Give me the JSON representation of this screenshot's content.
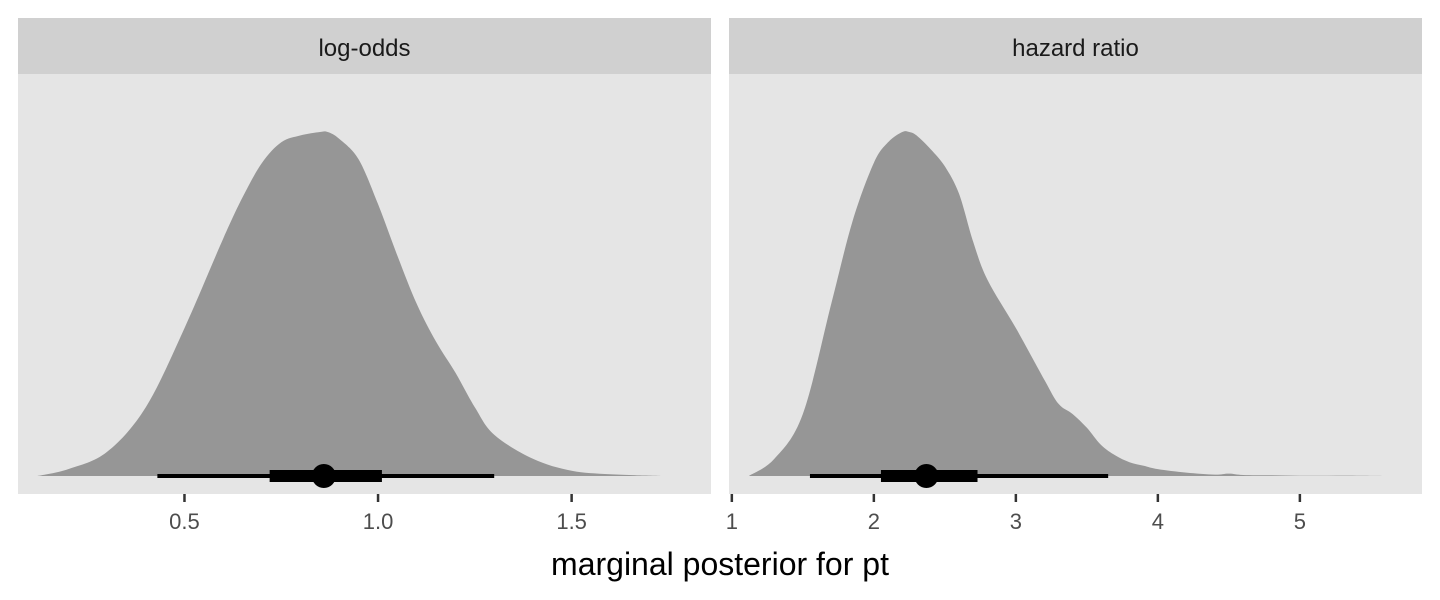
{
  "chart_data": {
    "type": "area",
    "xlabel": "marginal posterior for pt",
    "ylabel": "",
    "grid": false,
    "colors": {
      "panel_background": "#e5e5e5",
      "strip_background": "#d0d0d0",
      "density_fill": "#969696",
      "interval": "#000000",
      "tick": "#333333"
    },
    "panels": [
      {
        "strip_label": "log-odds",
        "xlim": [
          0.07,
          1.86
        ],
        "x_ticks": [
          0.5,
          1.0,
          1.5
        ],
        "x_tick_labels": [
          "0.5",
          "1.0",
          "1.5"
        ],
        "density": {
          "x": [
            0.12,
            0.2,
            0.3,
            0.4,
            0.5,
            0.6,
            0.65,
            0.7,
            0.75,
            0.8,
            0.85,
            0.87,
            0.9,
            0.95,
            1.0,
            1.05,
            1.1,
            1.15,
            1.2,
            1.25,
            1.3,
            1.4,
            1.5,
            1.6,
            1.74
          ],
          "y": [
            0.0,
            0.02,
            0.07,
            0.2,
            0.43,
            0.69,
            0.81,
            0.91,
            0.97,
            0.99,
            1.0,
            1.0,
            0.98,
            0.92,
            0.79,
            0.64,
            0.5,
            0.39,
            0.3,
            0.2,
            0.12,
            0.05,
            0.015,
            0.005,
            0.0
          ]
        },
        "point_estimate": 0.86,
        "interval_66": [
          0.72,
          1.01
        ],
        "interval_95": [
          0.43,
          1.3
        ]
      },
      {
        "strip_label": "hazard ratio",
        "xlim": [
          0.98,
          5.86
        ],
        "x_ticks": [
          1,
          2,
          3,
          4,
          5
        ],
        "x_tick_labels": [
          "1",
          "2",
          "3",
          "4",
          "5"
        ],
        "density": {
          "x": [
            1.12,
            1.3,
            1.5,
            1.7,
            1.85,
            2.0,
            2.1,
            2.2,
            2.25,
            2.3,
            2.4,
            2.5,
            2.6,
            2.7,
            2.8,
            3.0,
            3.2,
            3.3,
            3.4,
            3.5,
            3.6,
            3.7,
            3.8,
            3.9,
            4.0,
            4.2,
            4.4,
            4.5,
            4.6,
            4.8,
            5.0,
            5.2,
            5.4,
            5.62
          ],
          "y": [
            0.0,
            0.05,
            0.18,
            0.5,
            0.74,
            0.91,
            0.97,
            1.0,
            1.0,
            0.99,
            0.95,
            0.9,
            0.82,
            0.68,
            0.57,
            0.43,
            0.28,
            0.21,
            0.18,
            0.14,
            0.09,
            0.06,
            0.04,
            0.03,
            0.02,
            0.01,
            0.004,
            0.007,
            0.003,
            0.002,
            0.001,
            0.001,
            0.001,
            0.0
          ]
        },
        "point_estimate": 2.37,
        "interval_66": [
          2.05,
          2.73
        ],
        "interval_95": [
          1.55,
          3.65
        ]
      }
    ]
  }
}
